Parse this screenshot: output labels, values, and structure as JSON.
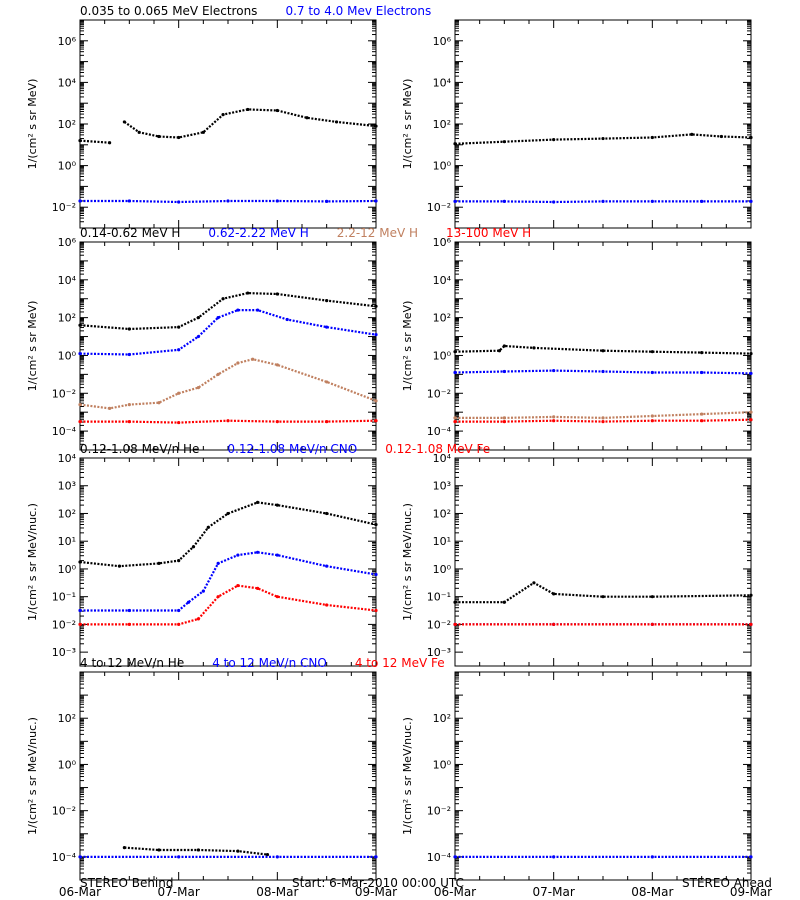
{
  "colors": {
    "black": "#000000",
    "blue": "#0000ff",
    "tan": "#c08060",
    "red": "#ff0000"
  },
  "footer": {
    "left": "STEREO Behind",
    "center": "Start:  6-Mar-2010 00:00 UTC",
    "right": "STEREO Ahead"
  },
  "chart_data": [
    {
      "type": "scatter",
      "title_parts": [
        {
          "text": "0.035 to 0.065 MeV Electrons",
          "color": "#000000"
        },
        {
          "text": "0.7 to 4.0 Mev Electrons",
          "color": "#0000ff"
        }
      ],
      "ylabel": "1/(cm² s sr MeV)",
      "yscale": "log",
      "ylim": [
        -3,
        7
      ],
      "ytick_exponents": [
        -2,
        0,
        2,
        4,
        6
      ],
      "x_dates": [
        "06-Mar",
        "07-Mar",
        "08-Mar",
        "09-Mar"
      ],
      "panels": [
        {
          "name": "STEREO Behind",
          "series": [
            {
              "color": "#000000",
              "x": [
                0,
                0.3,
                0.38,
                0.45,
                0.6,
                0.8,
                1.0,
                1.25,
                1.45,
                1.7,
                2.0,
                2.3,
                2.6,
                3.0
              ],
              "log_y": [
                1.2,
                1.1,
                null,
                2.1,
                1.6,
                1.4,
                1.35,
                1.6,
                2.45,
                2.7,
                2.65,
                2.3,
                2.1,
                1.9
              ]
            },
            {
              "color": "#0000ff",
              "x": [
                0,
                0.5,
                1.0,
                1.5,
                2.0,
                2.5,
                3.0
              ],
              "log_y": [
                -1.7,
                -1.7,
                -1.75,
                -1.7,
                -1.7,
                -1.72,
                -1.7
              ]
            }
          ]
        },
        {
          "name": "STEREO Ahead",
          "series": [
            {
              "color": "#000000",
              "x": [
                0,
                0.5,
                1.0,
                1.5,
                2.0,
                2.4,
                2.7,
                3.0
              ],
              "log_y": [
                1.05,
                1.15,
                1.25,
                1.3,
                1.35,
                1.5,
                1.4,
                1.35
              ]
            },
            {
              "color": "#0000ff",
              "x": [
                0,
                0.5,
                1.0,
                1.5,
                2.0,
                2.5,
                3.0
              ],
              "log_y": [
                -1.72,
                -1.72,
                -1.75,
                -1.72,
                -1.72,
                -1.72,
                -1.72
              ]
            }
          ]
        }
      ]
    },
    {
      "type": "scatter",
      "title_parts": [
        {
          "text": "0.14-0.62 MeV H",
          "color": "#000000"
        },
        {
          "text": "0.62-2.22 MeV H",
          "color": "#0000ff"
        },
        {
          "text": "2.2-12 MeV H",
          "color": "#c08060"
        },
        {
          "text": "13-100 MeV H",
          "color": "#ff0000"
        }
      ],
      "ylabel": "1/(cm² s sr MeV)",
      "yscale": "log",
      "ylim": [
        -5,
        6
      ],
      "ytick_exponents": [
        -4,
        -2,
        0,
        2,
        4,
        6
      ],
      "x_dates": [
        "06-Mar",
        "07-Mar",
        "08-Mar",
        "09-Mar"
      ],
      "panels": [
        {
          "name": "STEREO Behind",
          "series": [
            {
              "color": "#000000",
              "x": [
                0,
                0.5,
                1.0,
                1.2,
                1.45,
                1.7,
                2.0,
                2.5,
                3.0
              ],
              "log_y": [
                1.6,
                1.4,
                1.5,
                2.0,
                3.0,
                3.3,
                3.25,
                2.9,
                2.6
              ]
            },
            {
              "color": "#0000ff",
              "x": [
                0,
                0.5,
                1.0,
                1.2,
                1.4,
                1.6,
                1.8,
                2.1,
                2.5,
                3.0
              ],
              "log_y": [
                0.1,
                0.05,
                0.3,
                1.0,
                2.0,
                2.4,
                2.4,
                1.9,
                1.5,
                1.1
              ]
            },
            {
              "color": "#c08060",
              "x": [
                0,
                0.3,
                0.5,
                0.8,
                1.0,
                1.2,
                1.4,
                1.6,
                1.75,
                2.0,
                2.5,
                3.0
              ],
              "log_y": [
                -2.6,
                -2.8,
                -2.6,
                -2.5,
                -2.0,
                -1.7,
                -1.0,
                -0.4,
                -0.2,
                -0.5,
                -1.4,
                -2.4
              ]
            },
            {
              "color": "#ff0000",
              "x": [
                0,
                0.5,
                1.0,
                1.5,
                2.0,
                2.5,
                3.0
              ],
              "log_y": [
                -3.5,
                -3.5,
                -3.55,
                -3.45,
                -3.5,
                -3.5,
                -3.45
              ]
            }
          ]
        },
        {
          "name": "STEREO Ahead",
          "series": [
            {
              "color": "#000000",
              "x": [
                0,
                0.45,
                0.5,
                0.8,
                1.5,
                2.0,
                2.5,
                3.0
              ],
              "log_y": [
                0.2,
                0.25,
                0.5,
                0.4,
                0.25,
                0.2,
                0.15,
                0.1
              ]
            },
            {
              "color": "#0000ff",
              "x": [
                0,
                0.5,
                1.0,
                1.5,
                2.0,
                2.5,
                3.0
              ],
              "log_y": [
                -0.9,
                -0.85,
                -0.8,
                -0.85,
                -0.9,
                -0.9,
                -0.95
              ]
            },
            {
              "color": "#c08060",
              "x": [
                0,
                0.5,
                1.0,
                1.5,
                2.0,
                2.5,
                3.0
              ],
              "log_y": [
                -3.3,
                -3.3,
                -3.25,
                -3.3,
                -3.2,
                -3.1,
                -3.0
              ]
            },
            {
              "color": "#ff0000",
              "x": [
                0,
                0.5,
                1.0,
                1.5,
                2.0,
                2.5,
                3.0
              ],
              "log_y": [
                -3.5,
                -3.5,
                -3.45,
                -3.5,
                -3.45,
                -3.45,
                -3.4
              ]
            }
          ]
        }
      ]
    },
    {
      "type": "scatter",
      "title_parts": [
        {
          "text": "0.12-1.08 MeV/n He",
          "color": "#000000"
        },
        {
          "text": "0.12-1.08 MeV/n CNO",
          "color": "#0000ff"
        },
        {
          "text": "0.12-1.08 MeV Fe",
          "color": "#ff0000"
        }
      ],
      "ylabel": "1/(cm² s sr MeV/nuc.)",
      "yscale": "log",
      "ylim": [
        -3.5,
        4
      ],
      "ytick_exponents": [
        -3,
        -2,
        -1,
        0,
        1,
        2,
        3,
        4
      ],
      "x_dates": [
        "06-Mar",
        "07-Mar",
        "08-Mar",
        "09-Mar"
      ],
      "panels": [
        {
          "name": "STEREO Behind",
          "series": [
            {
              "color": "#000000",
              "x": [
                0,
                0.4,
                0.8,
                1.0,
                1.15,
                1.3,
                1.5,
                1.8,
                2.0,
                2.5,
                3.0
              ],
              "log_y": [
                0.25,
                0.1,
                0.2,
                0.3,
                0.8,
                1.5,
                2.0,
                2.4,
                2.3,
                2.0,
                1.6
              ]
            },
            {
              "color": "#0000ff",
              "x": [
                0,
                0.5,
                1.0,
                1.1,
                1.25,
                1.4,
                1.6,
                1.8,
                2.0,
                2.5,
                3.0
              ],
              "log_y": [
                -1.5,
                -1.5,
                -1.5,
                -1.2,
                -0.8,
                0.2,
                0.5,
                0.6,
                0.5,
                0.1,
                -0.2
              ]
            },
            {
              "color": "#ff0000",
              "x": [
                0,
                0.5,
                1.0,
                1.2,
                1.4,
                1.6,
                1.8,
                2.0,
                2.5,
                3.0
              ],
              "log_y": [
                -2.0,
                -2.0,
                -2.0,
                -1.8,
                -1.0,
                -0.6,
                -0.7,
                -1.0,
                -1.3,
                -1.5
              ]
            }
          ]
        },
        {
          "name": "STEREO Ahead",
          "series": [
            {
              "color": "#000000",
              "x": [
                0,
                0.5,
                0.8,
                1.0,
                1.5,
                2.0,
                3.0
              ],
              "log_y": [
                -1.2,
                -1.2,
                -0.5,
                -0.9,
                -1.0,
                -1.0,
                -0.95
              ]
            },
            {
              "color": "#0000ff",
              "x": [
                0,
                1.0,
                2.0,
                3.0
              ],
              "log_y": [
                -2.0,
                -2.0,
                -2.0,
                -2.0
              ]
            },
            {
              "color": "#ff0000",
              "x": [
                0,
                1.0,
                2.0,
                3.0
              ],
              "log_y": [
                -2.0,
                -2.0,
                -2.0,
                -2.0
              ]
            }
          ]
        }
      ]
    },
    {
      "type": "scatter",
      "title_parts": [
        {
          "text": "4 to 12 MeV/n He",
          "color": "#000000"
        },
        {
          "text": "4 to 12 MeV/n CNO",
          "color": "#0000ff"
        },
        {
          "text": "4 to 12 MeV Fe",
          "color": "#ff0000"
        }
      ],
      "ylabel": "1/(cm² s sr MeV/nuc.)",
      "yscale": "log",
      "ylim": [
        -5,
        4
      ],
      "ytick_exponents": [
        -4,
        -2,
        0,
        2
      ],
      "x_dates": [
        "06-Mar",
        "07-Mar",
        "08-Mar",
        "09-Mar"
      ],
      "panels": [
        {
          "name": "STEREO Behind",
          "series": [
            {
              "color": "#000000",
              "x": [
                0.45,
                0.8,
                1.2,
                1.6,
                1.9
              ],
              "log_y": [
                -3.6,
                -3.7,
                -3.7,
                -3.75,
                -3.9
              ]
            },
            {
              "color": "#0000ff",
              "x": [
                0,
                1.0,
                2.0,
                3.0
              ],
              "log_y": [
                -4.0,
                -4.0,
                -4.0,
                -4.0
              ]
            }
          ]
        },
        {
          "name": "STEREO Ahead",
          "series": [
            {
              "color": "#0000ff",
              "x": [
                0,
                1.0,
                2.0,
                3.0
              ],
              "log_y": [
                -4.0,
                -4.0,
                -4.0,
                -4.0
              ]
            }
          ]
        }
      ]
    }
  ]
}
